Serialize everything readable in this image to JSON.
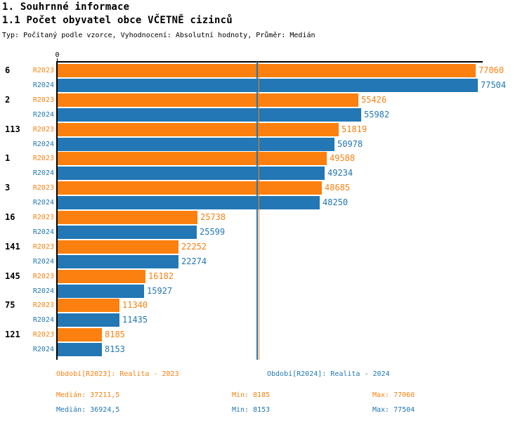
{
  "page": {
    "title1": "1. Souhrnné informace",
    "title2": "1.1 Počet obyvatel obce VČETNĚ cizinců",
    "subtitle": "Typ: Počítaný podle vzorce, Vyhodnocení: Absolutní hodnoty, Průměr: Medián"
  },
  "colors": {
    "r2023": "#FB800F",
    "r2024": "#2277B4",
    "axis": "#000000"
  },
  "chart_data": {
    "type": "bar",
    "orientation": "horizontal",
    "grid": false,
    "categories": [
      "6",
      "2",
      "113",
      "1",
      "3",
      "16",
      "141",
      "145",
      "75",
      "121"
    ],
    "series": [
      {
        "name": "R2023",
        "color": "#FB800F",
        "values": [
          77060,
          55426,
          51819,
          49588,
          48685,
          25738,
          22252,
          16182,
          11340,
          8185
        ],
        "median": 37211.5,
        "min": 8185,
        "max": 77060
      },
      {
        "name": "R2024",
        "color": "#2277B4",
        "values": [
          77504,
          55982,
          50978,
          49234,
          48250,
          25599,
          22274,
          15927,
          11435,
          8153
        ],
        "median": 36924.5,
        "min": 8153,
        "max": 77504
      }
    ],
    "x_axis": {
      "zero_label": "0",
      "range": [
        0,
        78500
      ]
    },
    "median_lines": [
      37211.5,
      36924.5
    ]
  },
  "legend": {
    "period_r2023": "Období[R2023]: Realita - 2023",
    "period_r2024": "Období[R2024]: Realita - 2024",
    "stats_r2023": {
      "median": "Medián: 37211,5",
      "min": "Min: 8185",
      "max": "Max: 77060"
    },
    "stats_r2024": {
      "median": "Medián: 36924,5",
      "min": "Min: 8153",
      "max": "Max: 77504"
    }
  }
}
